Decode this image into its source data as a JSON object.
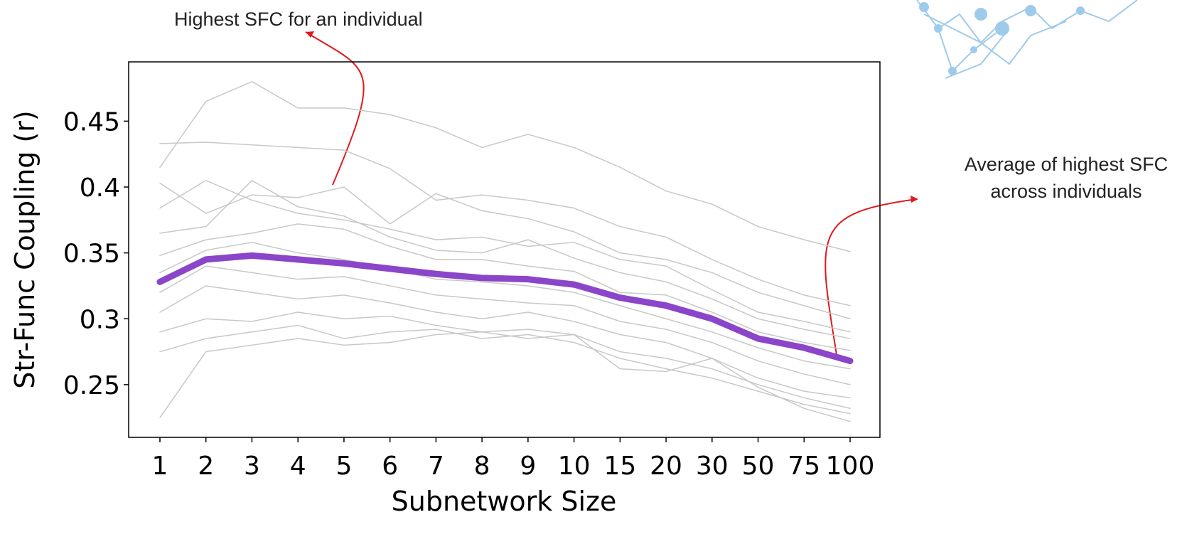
{
  "chart_data": {
    "type": "line",
    "x_label": "Subnetwork Size",
    "y_label": "Str-Func Coupling (r)",
    "annotations": [
      "Highest SFC for an individual",
      "Average of highest SFC across individuals"
    ],
    "categories": [
      "1",
      "2",
      "3",
      "4",
      "5",
      "6",
      "7",
      "8",
      "9",
      "10",
      "15",
      "20",
      "30",
      "50",
      "75",
      "100"
    ],
    "ylim": [
      0.21,
      0.495
    ],
    "yticks": [
      0.25,
      0.3,
      0.35,
      0.4,
      0.45
    ],
    "series": [
      {
        "color": "#c8c8c8",
        "values": [
          0.415,
          0.465,
          0.48,
          0.46,
          0.46,
          0.455,
          0.445,
          0.43,
          0.44,
          0.43,
          0.415,
          0.397,
          0.387,
          0.37,
          0.36,
          0.351
        ]
      },
      {
        "color": "#c8c8c8",
        "values": [
          0.433,
          0.434,
          0.432,
          0.43,
          0.428,
          0.414,
          0.39,
          0.394,
          0.39,
          0.384,
          0.37,
          0.362,
          0.345,
          0.33,
          0.318,
          0.31
        ]
      },
      {
        "color": "#c8c8c8",
        "values": [
          0.403,
          0.38,
          0.394,
          0.392,
          0.4,
          0.372,
          0.395,
          0.382,
          0.376,
          0.366,
          0.35,
          0.345,
          0.335,
          0.32,
          0.31,
          0.3
        ]
      },
      {
        "color": "#c8c8c8",
        "values": [
          0.384,
          0.405,
          0.39,
          0.38,
          0.375,
          0.368,
          0.36,
          0.362,
          0.355,
          0.358,
          0.345,
          0.34,
          0.322,
          0.305,
          0.298,
          0.29
        ]
      },
      {
        "color": "#c8c8c8",
        "values": [
          0.365,
          0.37,
          0.405,
          0.385,
          0.378,
          0.362,
          0.352,
          0.35,
          0.36,
          0.346,
          0.335,
          0.328,
          0.315,
          0.3,
          0.292,
          0.285
        ]
      },
      {
        "color": "#c8c8c8",
        "values": [
          0.348,
          0.36,
          0.365,
          0.372,
          0.368,
          0.355,
          0.345,
          0.345,
          0.34,
          0.336,
          0.32,
          0.318,
          0.305,
          0.29,
          0.282,
          0.276
        ]
      },
      {
        "color": "#c8c8c8",
        "values": [
          0.335,
          0.352,
          0.358,
          0.35,
          0.345,
          0.338,
          0.33,
          0.328,
          0.325,
          0.32,
          0.31,
          0.3,
          0.29,
          0.278,
          0.268,
          0.262
        ]
      },
      {
        "color": "#c8c8c8",
        "values": [
          0.32,
          0.34,
          0.335,
          0.33,
          0.332,
          0.325,
          0.318,
          0.315,
          0.312,
          0.31,
          0.298,
          0.292,
          0.282,
          0.268,
          0.258,
          0.25
        ]
      },
      {
        "color": "#c8c8c8",
        "values": [
          0.305,
          0.325,
          0.32,
          0.315,
          0.318,
          0.312,
          0.305,
          0.3,
          0.305,
          0.298,
          0.288,
          0.282,
          0.27,
          0.255,
          0.245,
          0.24
        ]
      },
      {
        "color": "#c8c8c8",
        "values": [
          0.29,
          0.3,
          0.298,
          0.305,
          0.3,
          0.302,
          0.295,
          0.29,
          0.292,
          0.288,
          0.275,
          0.27,
          0.262,
          0.25,
          0.24,
          0.232
        ]
      },
      {
        "color": "#c8c8c8",
        "values": [
          0.275,
          0.285,
          0.29,
          0.295,
          0.285,
          0.29,
          0.292,
          0.285,
          0.288,
          0.282,
          0.27,
          0.262,
          0.255,
          0.245,
          0.235,
          0.228
        ]
      },
      {
        "color": "#c8c8c8",
        "values": [
          0.225,
          0.275,
          0.28,
          0.285,
          0.28,
          0.282,
          0.288,
          0.29,
          0.285,
          0.288,
          0.262,
          0.26,
          0.27,
          0.248,
          0.232,
          0.222
        ]
      },
      {
        "color": "#8b45c9",
        "values": [
          0.328,
          0.345,
          0.348,
          0.345,
          0.342,
          0.338,
          0.334,
          0.331,
          0.33,
          0.326,
          0.316,
          0.31,
          0.3,
          0.285,
          0.278,
          0.268
        ]
      }
    ]
  }
}
